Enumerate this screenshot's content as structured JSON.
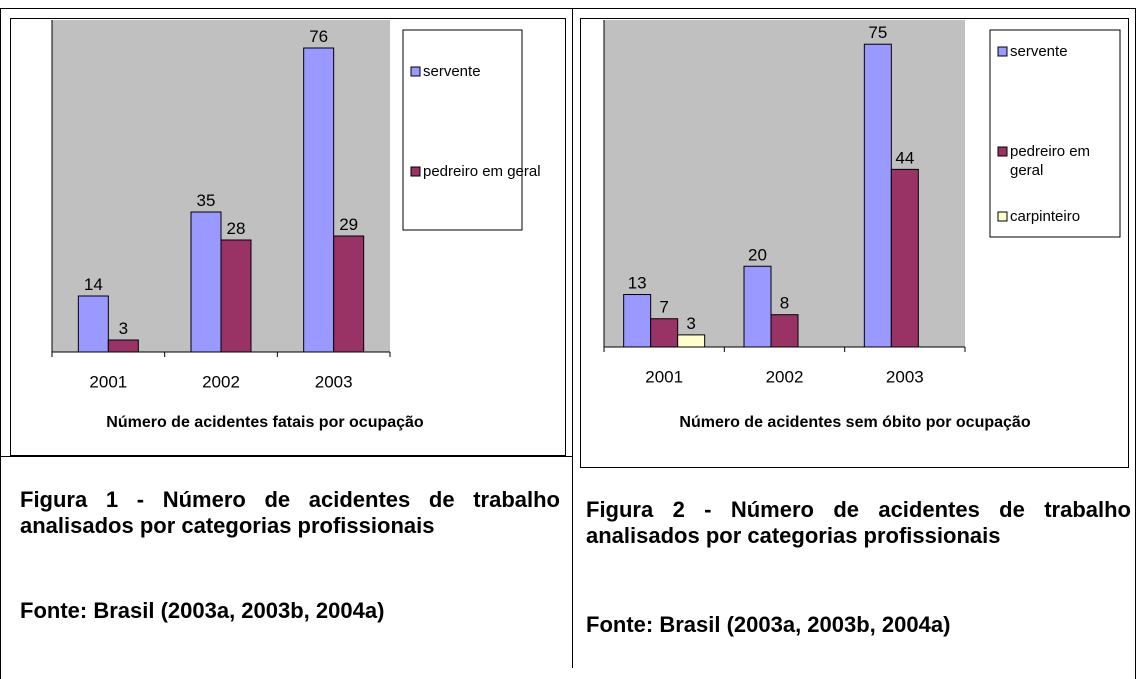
{
  "chart_data": [
    {
      "type": "bar",
      "x_label": "Número de acidentes fatais por ocupação",
      "categories": [
        "2001",
        "2002",
        "2003"
      ],
      "series": [
        {
          "name": "servente",
          "color": "#9999ff",
          "values": [
            14,
            35,
            76
          ]
        },
        {
          "name": "pedreiro em geral",
          "color": "#993366",
          "values": [
            3,
            28,
            29
          ]
        }
      ],
      "ylim": [
        0,
        83
      ]
    },
    {
      "type": "bar",
      "x_label": "Número de acidentes sem óbito por ocupação",
      "categories": [
        "2001",
        "2002",
        "2003"
      ],
      "series": [
        {
          "name": "servente",
          "color": "#9999ff",
          "values": [
            13,
            20,
            75
          ]
        },
        {
          "name": "pedreiro em geral",
          "color": "#993366",
          "values": [
            7,
            8,
            44
          ]
        },
        {
          "name": "carpinteiro",
          "color": "#ffffcc",
          "values": [
            3,
            null,
            null
          ]
        }
      ],
      "ylim": [
        0,
        81
      ]
    }
  ],
  "captions": [
    {
      "figure": "Figura 1 - Número de acidentes de trabalho analisados por categorias profissionais",
      "source": "Fonte: Brasil (2003a, 2003b, 2004a)"
    },
    {
      "figure": "Figura 2 - Número de acidentes de trabalho analisados por categorias profissionais",
      "source": "Fonte: Brasil (2003a, 2003b, 2004a)"
    }
  ]
}
